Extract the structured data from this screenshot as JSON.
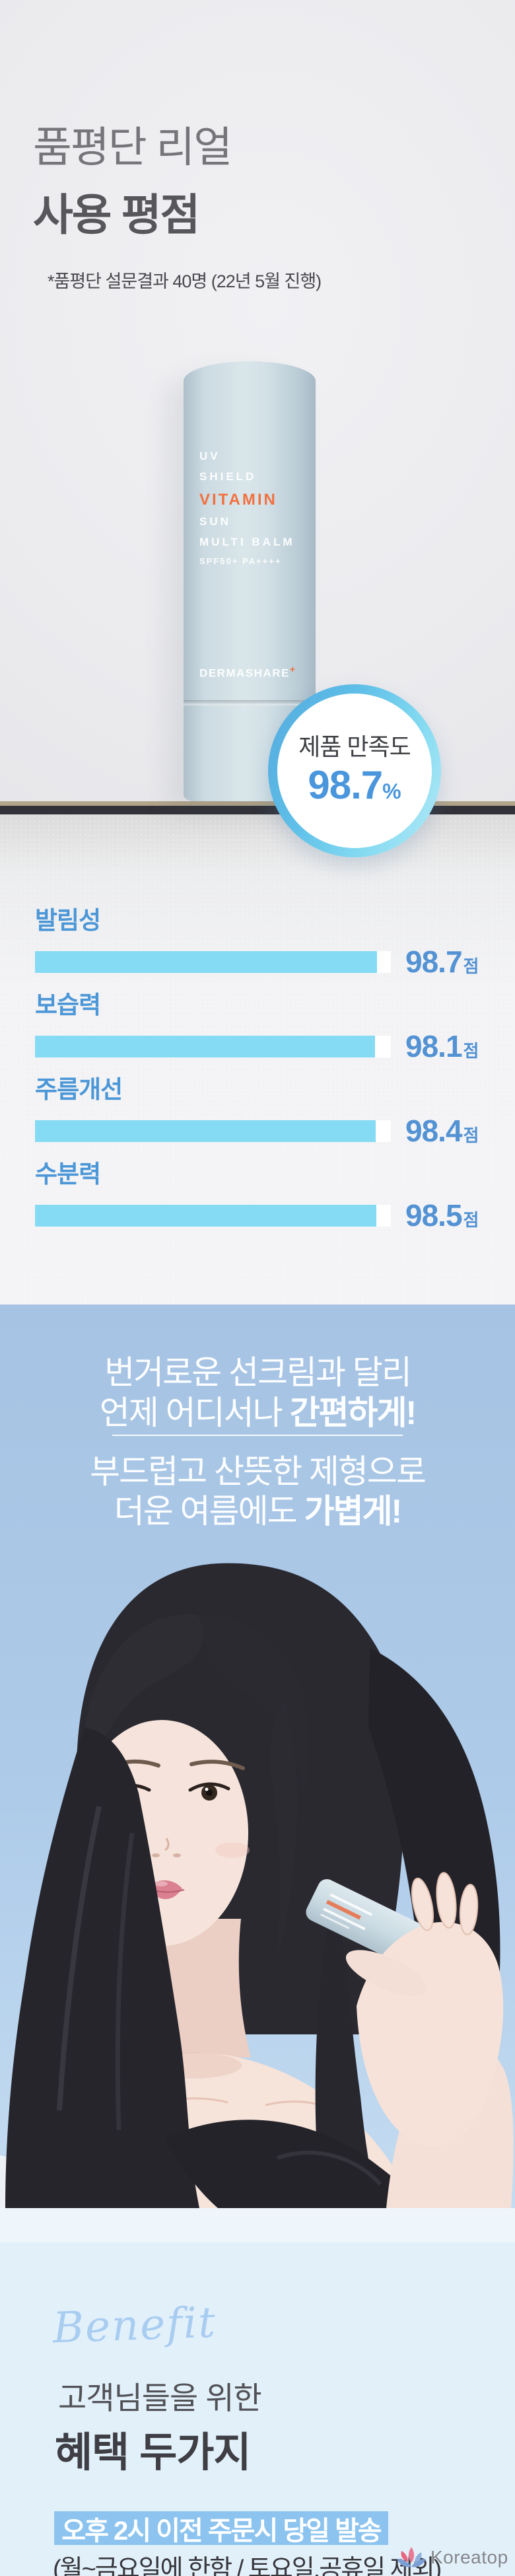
{
  "header": {
    "title_line1": "품평단 리얼",
    "title_line2": "사용 평점",
    "subtitle": "*품평단 설문결과 40명 (22년 5월 진행)"
  },
  "product": {
    "line_uv": "UV",
    "line_shield": "SHIELD",
    "line_vitamin": "VITAMIN",
    "line_sun": "SUN",
    "line_multibalm": "MULTI BALM",
    "line_spf": "SPF50+ PA++++",
    "brand": "DERMASHARE",
    "brand_plus": "+"
  },
  "badge": {
    "label": "제품 만족도",
    "value": "98.7",
    "unit": "%"
  },
  "chart_data": {
    "type": "bar",
    "orientation": "horizontal",
    "title": "품평단 사용 평점",
    "categories": [
      "발림성",
      "보습력",
      "주름개선",
      "수분력"
    ],
    "values": [
      98.7,
      98.1,
      98.4,
      98.5
    ],
    "unit": "점",
    "xlim": [
      0,
      100
    ],
    "grid": false,
    "bar_color": "#86dbf4",
    "track_color": "#ffffff",
    "label_color": "#4c97d7",
    "value_color": "#5392d3"
  },
  "promo": {
    "line1": "번거로운 선크림과 달리",
    "line2_prefix": "언제 어디서나 ",
    "line2_bold": "간편하게!",
    "line3": "부드럽고 산뜻한 제형으로",
    "line4_prefix": "더운 여름에도 ",
    "line4_bold": "가볍게!"
  },
  "benefit": {
    "script_title": "Benefit",
    "subtitle": "고객님들을 위한",
    "title": "혜택 두가지",
    "highlight": "오후 2시 이전 주문시 당일 발송",
    "note": "(월~금요일에 한함 / 토요일.공휴일 제외)"
  },
  "footer_logo": {
    "text": "Koreatop"
  }
}
